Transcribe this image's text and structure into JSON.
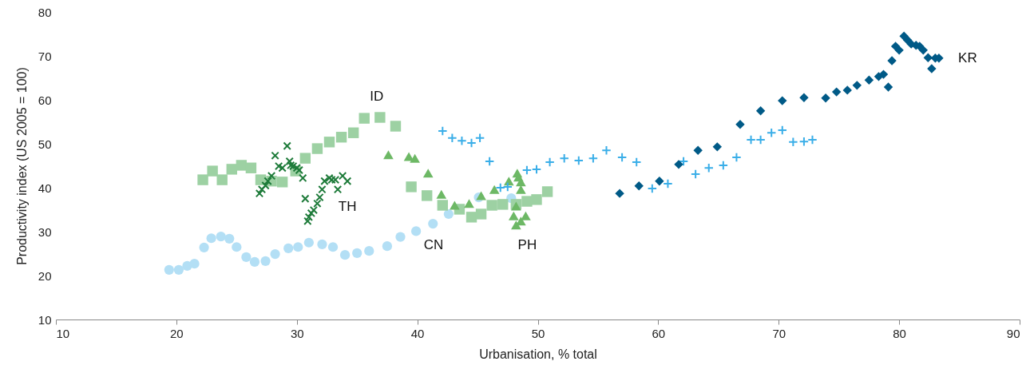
{
  "chart_data": {
    "type": "scatter",
    "xlabel": "Urbanisation, % total",
    "ylabel": "Productivity index (US 2005  = 100)",
    "xlim": [
      10,
      90
    ],
    "xticks": [
      10,
      20,
      30,
      40,
      50,
      60,
      70,
      80,
      90
    ],
    "ylim": [
      10,
      80
    ],
    "yticks": [
      10,
      20,
      30,
      40,
      50,
      60,
      70,
      80
    ],
    "grid": false,
    "series": [
      {
        "name": "CN",
        "color": "#b3dff5",
        "marker": "circle",
        "x": [
          19.4,
          20.2,
          20.9,
          21.5,
          22.3,
          22.9,
          23.7,
          24.4,
          25.0,
          25.8,
          26.5,
          27.4,
          28.2,
          29.3,
          30.1,
          31.0,
          32.1,
          33.0,
          34.0,
          35.0,
          36.0,
          37.5,
          38.6,
          39.9,
          41.3,
          42.6,
          43.5,
          45.1,
          47.8
        ],
        "values": [
          21.3,
          21.3,
          22.2,
          22.7,
          26.4,
          28.5,
          28.9,
          28.4,
          26.5,
          24.2,
          23.1,
          23.3,
          24.9,
          26.2,
          26.5,
          27.5,
          27.1,
          26.5,
          24.7,
          25.1,
          25.6,
          26.7,
          28.8,
          30.1,
          31.8,
          34.0,
          null,
          37.8,
          37.6
        ]
      },
      {
        "name": "ID",
        "color": "#9dd1a3",
        "marker": "square",
        "x": [
          22.2,
          23.0,
          23.8,
          24.6,
          25.4,
          26.2,
          27.0,
          27.9,
          28.8,
          29.9,
          30.7,
          31.7,
          32.7,
          33.7,
          34.7,
          35.6,
          36.9,
          38.2,
          39.5,
          40.8,
          42.1,
          43.5,
          44.5,
          45.3,
          46.2,
          47.1,
          48.2,
          49.1,
          49.9,
          50.8
        ],
        "values": [
          41.8,
          43.8,
          41.8,
          44.2,
          45.1,
          44.5,
          41.8,
          41.5,
          41.3,
          43.8,
          46.7,
          48.9,
          50.4,
          51.5,
          52.5,
          55.8,
          56.0,
          54.0,
          40.2,
          38.2,
          36.0,
          35.1,
          33.3,
          34.0,
          36.0,
          36.2,
          36.2,
          36.9,
          37.3,
          39.1
        ]
      },
      {
        "name": "TH",
        "color": "#1e7b3a",
        "marker": "x",
        "x": [
          26.9,
          27.1,
          27.4,
          27.6,
          27.9,
          28.2,
          28.5,
          28.8,
          29.2,
          29.4,
          29.5,
          29.7,
          30.0,
          30.2,
          30.5,
          30.7,
          30.9,
          31.0,
          31.2,
          31.4,
          31.7,
          31.9,
          32.1,
          32.3,
          32.7,
          32.9,
          33.2,
          33.4,
          33.8,
          34.2
        ],
        "values": [
          38.7,
          39.6,
          40.5,
          41.5,
          42.7,
          47.3,
          44.9,
          44.5,
          49.5,
          46.0,
          45.1,
          44.9,
          44.5,
          44.0,
          42.2,
          37.5,
          32.4,
          33.3,
          34.2,
          34.9,
          36.4,
          37.8,
          39.6,
          41.5,
          42.2,
          41.8,
          41.8,
          39.6,
          42.7,
          41.5
        ]
      },
      {
        "name": "PH",
        "color": "#6db865",
        "marker": "triangle",
        "x": [
          37.6,
          39.3,
          39.8,
          40.9,
          42.0,
          43.1,
          44.3,
          45.3,
          46.4,
          47.6,
          48.3,
          48.4,
          48.6,
          48.6,
          48.2,
          48.0,
          48.1,
          48.2,
          48.6,
          49.0
        ],
        "values": [
          47.5,
          47.1,
          46.7,
          43.3,
          38.5,
          36.0,
          36.4,
          38.2,
          39.6,
          41.5,
          43.3,
          42.4,
          41.3,
          39.6,
          35.8,
          33.6,
          null,
          31.5,
          32.4,
          33.6
        ]
      },
      {
        "color": "#3aaee8",
        "marker": "cross",
        "x": [
          42.1,
          42.9,
          43.7,
          44.5,
          45.2,
          46.0,
          46.9,
          47.5,
          49.1,
          49.9,
          51.0,
          52.2,
          53.4,
          54.6,
          55.7,
          57.0,
          58.2,
          59.5,
          60.8,
          62.1,
          63.1,
          64.2,
          65.4,
          66.5,
          67.7,
          68.5,
          69.4,
          70.3,
          71.2,
          72.1,
          72.8
        ],
        "values": [
          52.9,
          51.3,
          50.7,
          50.2,
          51.3,
          46.0,
          40.0,
          40.2,
          44.0,
          44.2,
          45.8,
          46.7,
          46.2,
          46.7,
          48.5,
          46.9,
          45.8,
          39.8,
          40.9,
          46.0,
          43.1,
          44.5,
          45.1,
          46.9,
          50.9,
          50.9,
          52.5,
          53.1,
          50.4,
          50.5,
          50.9
        ]
      },
      {
        "name": "KR",
        "color": "#005a87",
        "marker": "diamond",
        "x": [
          56.8,
          58.4,
          60.1,
          61.7,
          63.3,
          64.9,
          66.8,
          68.5,
          70.3,
          72.1,
          73.9,
          74.8,
          75.7,
          76.5,
          77.5,
          78.3,
          78.7,
          79.1,
          79.4,
          79.7,
          80.0,
          80.4,
          80.7,
          81.0,
          81.4,
          81.7,
          82.0,
          82.4,
          82.7,
          83.0,
          83.3
        ],
        "values": [
          38.7,
          40.4,
          41.5,
          45.3,
          48.5,
          49.3,
          54.4,
          57.5,
          59.8,
          60.5,
          60.4,
          61.8,
          62.2,
          63.3,
          64.5,
          65.3,
          65.8,
          62.9,
          68.9,
          72.2,
          71.3,
          74.5,
          73.6,
          72.7,
          72.4,
          72.2,
          71.3,
          69.6,
          67.1,
          69.5,
          69.5
        ]
      }
    ]
  }
}
